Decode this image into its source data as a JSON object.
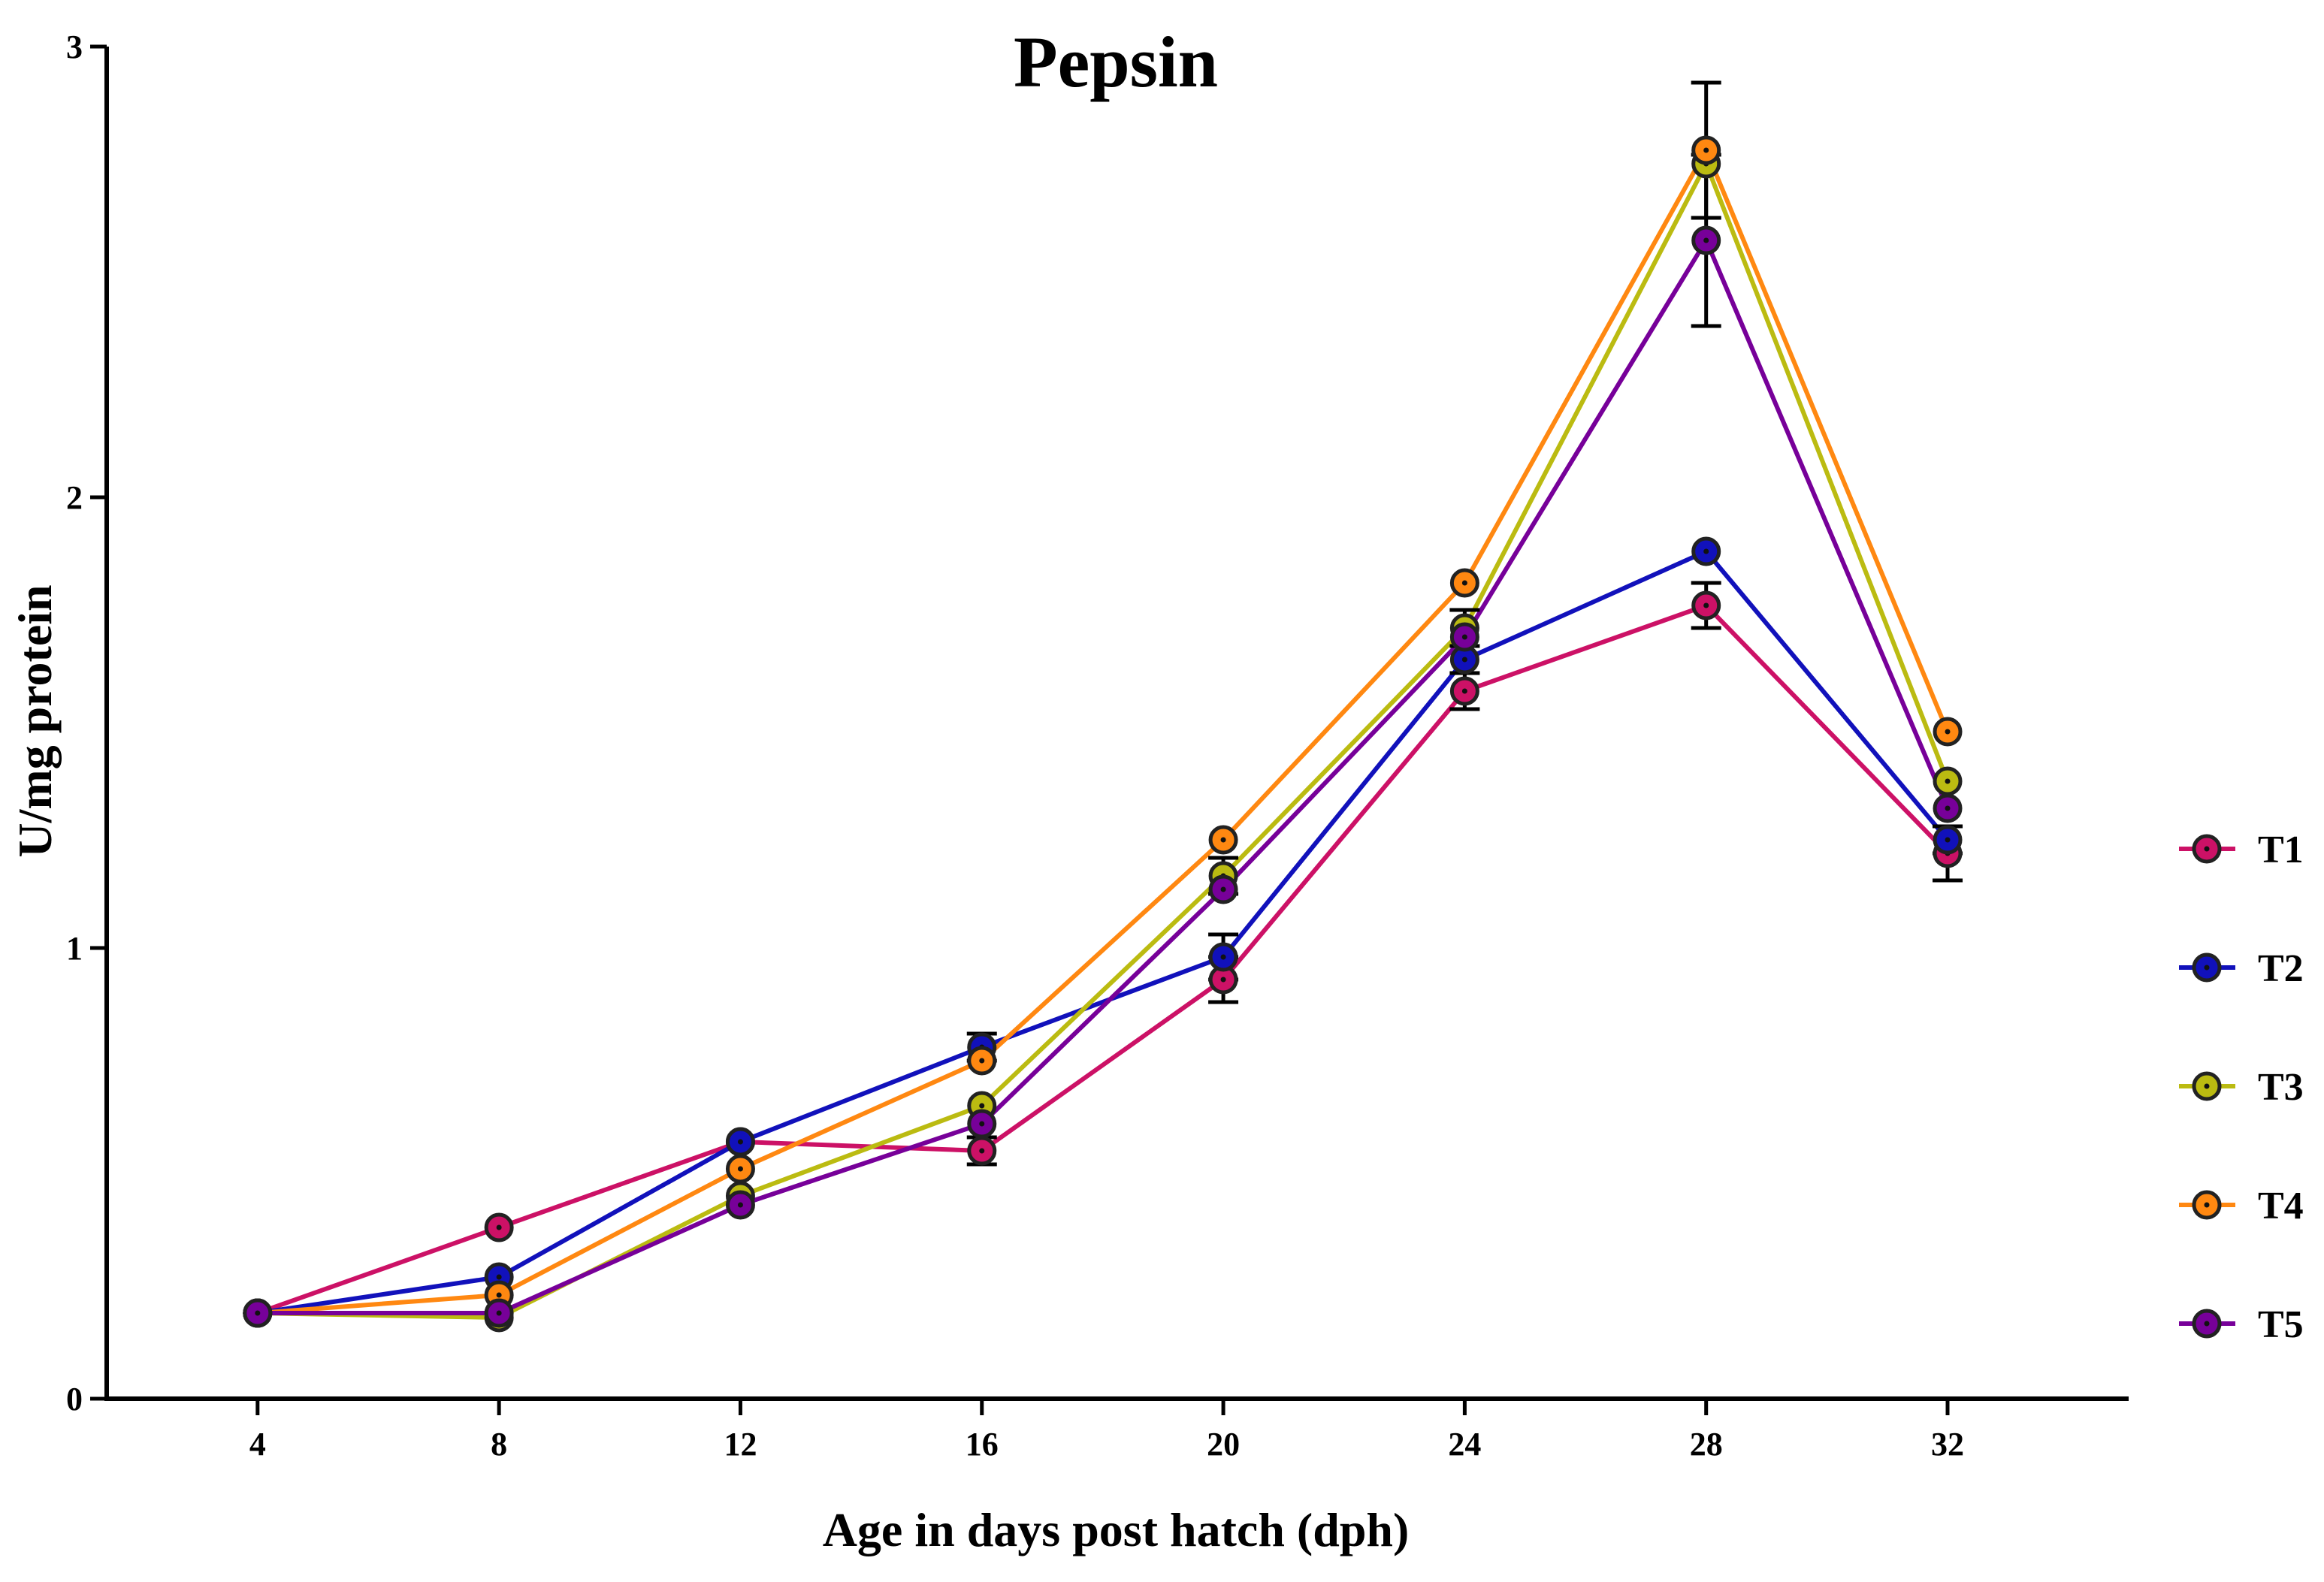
{
  "chart_data": {
    "type": "line",
    "title": "Pepsin",
    "xlabel": "Age in days post hatch (dph)",
    "ylabel": "U/mg protein",
    "x": [
      4,
      8,
      12,
      16,
      20,
      24,
      28,
      32
    ],
    "xticks": [
      4,
      8,
      12,
      16,
      20,
      24,
      28,
      32
    ],
    "xlim": [
      1.5,
      35
    ],
    "ylim": [
      0,
      3
    ],
    "yticks": [
      0,
      1,
      2,
      3
    ],
    "legend_position": "right",
    "series": [
      {
        "name": "T1",
        "color": "#cc1166",
        "values": [
          0.19,
          0.38,
          0.57,
          0.55,
          0.93,
          1.57,
          1.76,
          1.21
        ],
        "errors": [
          0.0,
          0.0,
          0.0,
          0.03,
          0.05,
          0.04,
          0.05,
          0.06
        ]
      },
      {
        "name": "T2",
        "color": "#1111bb",
        "values": [
          0.19,
          0.27,
          0.57,
          0.78,
          0.98,
          1.64,
          1.88,
          1.24
        ],
        "errors": [
          0.0,
          0.0,
          0.0,
          0.03,
          0.05,
          0.0,
          0.0,
          0.03
        ]
      },
      {
        "name": "T3",
        "color": "#bbbb11",
        "values": [
          0.19,
          0.18,
          0.45,
          0.65,
          1.16,
          1.71,
          2.74,
          1.37
        ],
        "errors": [
          0.0,
          0.0,
          0.0,
          0.0,
          0.04,
          0.04,
          0.0,
          0.0
        ]
      },
      {
        "name": "T4",
        "color": "#ff8811",
        "values": [
          0.19,
          0.23,
          0.51,
          0.75,
          1.24,
          1.81,
          2.77,
          1.48
        ],
        "errors": [
          0.0,
          0.0,
          0.0,
          0.0,
          0.0,
          0.0,
          0.15,
          0.0
        ]
      },
      {
        "name": "T5",
        "color": "#770099",
        "values": [
          0.19,
          0.19,
          0.43,
          0.61,
          1.13,
          1.69,
          2.57,
          1.31
        ],
        "errors": [
          0.0,
          0.0,
          0.0,
          0.0,
          0.0,
          0.0,
          0.19,
          0.0
        ]
      }
    ]
  }
}
